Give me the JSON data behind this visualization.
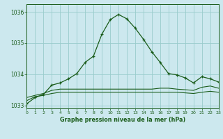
{
  "title": "Graphe pression niveau de la mer (hPa)",
  "background_color": "#cce8ee",
  "grid_color": "#99cccc",
  "line_color": "#1a5c1a",
  "xlim": [
    0,
    23
  ],
  "ylim": [
    1032.9,
    1036.25
  ],
  "yticks": [
    1033,
    1034,
    1035,
    1036
  ],
  "xticks": [
    0,
    1,
    2,
    3,
    4,
    5,
    6,
    7,
    8,
    9,
    10,
    11,
    12,
    13,
    14,
    15,
    16,
    17,
    18,
    19,
    20,
    21,
    22,
    23
  ],
  "series1_x": [
    0,
    1,
    2,
    3,
    4,
    5,
    6,
    7,
    8,
    9,
    10,
    11,
    12,
    13,
    14,
    15,
    16,
    17,
    18,
    19,
    20,
    21,
    22,
    23
  ],
  "series1_y": [
    1033.05,
    1033.25,
    1033.35,
    1033.65,
    1033.72,
    1033.85,
    1034.02,
    1034.38,
    1034.58,
    1035.28,
    1035.75,
    1035.92,
    1035.78,
    1035.48,
    1035.12,
    1034.72,
    1034.38,
    1034.02,
    1033.98,
    1033.88,
    1033.72,
    1033.92,
    1033.85,
    1033.75
  ],
  "series2_x": [
    0,
    1,
    2,
    3,
    4,
    5,
    6,
    7,
    8,
    9,
    10,
    11,
    12,
    13,
    14,
    15,
    16,
    17,
    18,
    19,
    20,
    21,
    22,
    23
  ],
  "series2_y": [
    1033.25,
    1033.32,
    1033.38,
    1033.48,
    1033.52,
    1033.52,
    1033.52,
    1033.52,
    1033.52,
    1033.52,
    1033.52,
    1033.52,
    1033.52,
    1033.52,
    1033.52,
    1033.52,
    1033.55,
    1033.55,
    1033.52,
    1033.5,
    1033.48,
    1033.58,
    1033.62,
    1033.55
  ],
  "series3_x": [
    0,
    1,
    2,
    3,
    4,
    5,
    6,
    7,
    8,
    9,
    10,
    11,
    12,
    13,
    14,
    15,
    16,
    17,
    18,
    19,
    20,
    21,
    22,
    23
  ],
  "series3_y": [
    1033.15,
    1033.28,
    1033.32,
    1033.38,
    1033.42,
    1033.42,
    1033.42,
    1033.42,
    1033.42,
    1033.42,
    1033.42,
    1033.42,
    1033.42,
    1033.42,
    1033.42,
    1033.42,
    1033.42,
    1033.42,
    1033.42,
    1033.4,
    1033.38,
    1033.42,
    1033.45,
    1033.42
  ]
}
